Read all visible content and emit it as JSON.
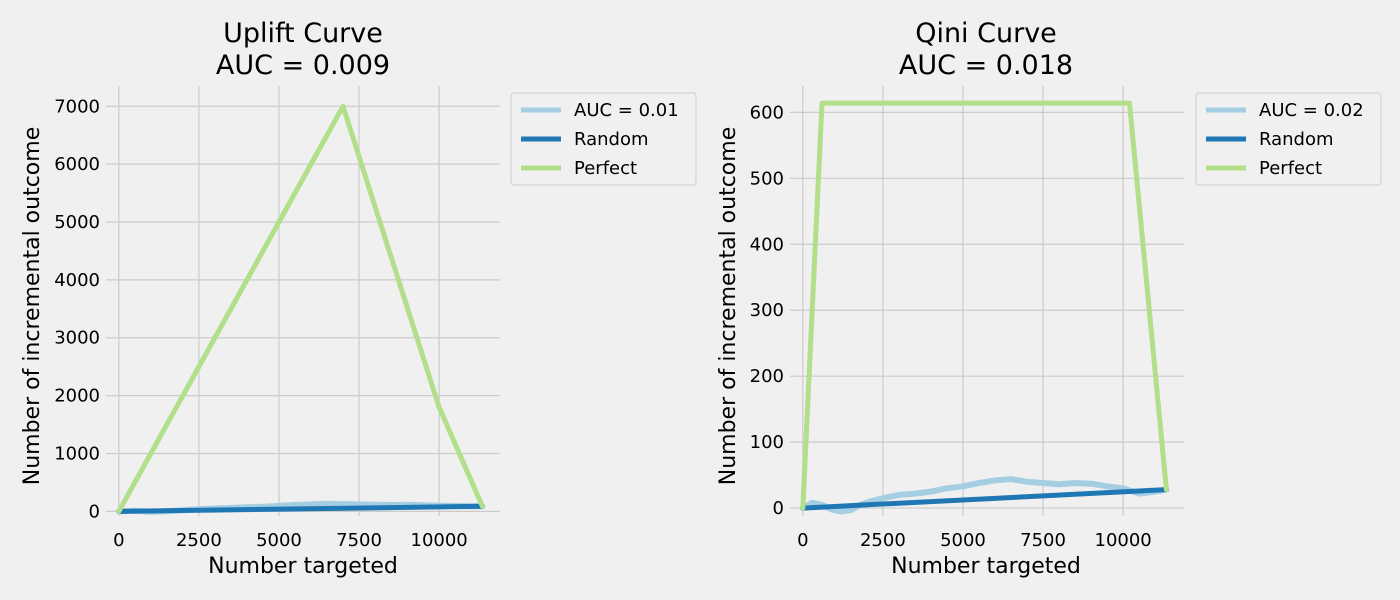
{
  "colors": {
    "background": "#f0f0f0",
    "grid": "#cbcbcb",
    "model": "#a6cee3",
    "random": "#1f78b4",
    "perfect": "#b2df8a"
  },
  "chart_data": [
    {
      "type": "line",
      "title": "Uplift Curve",
      "subtitle": "AUC = 0.009",
      "xlabel": "Number targeted",
      "ylabel": "Number of incremental outcome",
      "xlim": [
        -400,
        11900
      ],
      "ylim": [
        -80,
        7350
      ],
      "xticks": [
        0,
        2500,
        5000,
        7500,
        10000
      ],
      "yticks": [
        0,
        1000,
        2000,
        3000,
        4000,
        5000,
        6000,
        7000
      ],
      "grid": true,
      "legend_position": "outside-right",
      "series": [
        {
          "name": "AUC = 0.01",
          "color_key": "model",
          "x": [
            0,
            500,
            1000,
            1500,
            2000,
            2500,
            3000,
            3500,
            4000,
            4500,
            5000,
            5500,
            6000,
            6500,
            7000,
            7500,
            8000,
            8500,
            9000,
            9500,
            10000,
            10500,
            11000,
            11350
          ],
          "y": [
            0,
            10,
            -10,
            5,
            20,
            40,
            50,
            60,
            70,
            80,
            95,
            110,
            120,
            130,
            125,
            120,
            115,
            110,
            115,
            105,
            100,
            95,
            90,
            88
          ]
        },
        {
          "name": "Random",
          "color_key": "random",
          "x": [
            0,
            11350
          ],
          "y": [
            0,
            88
          ]
        },
        {
          "name": "Perfect",
          "color_key": "perfect",
          "x": [
            0,
            7000,
            10000,
            11350
          ],
          "y": [
            0,
            7000,
            1800,
            88
          ]
        }
      ]
    },
    {
      "type": "line",
      "title": "Qini Curve",
      "subtitle": "AUC = 0.018",
      "xlabel": "Number targeted",
      "ylabel": "Number of incremental outcome",
      "xlim": [
        -400,
        11900
      ],
      "ylim": [
        -12,
        640
      ],
      "xticks": [
        0,
        2500,
        5000,
        7500,
        10000
      ],
      "yticks": [
        0,
        100,
        200,
        300,
        400,
        500,
        600
      ],
      "grid": true,
      "legend_position": "outside-right",
      "series": [
        {
          "name": "AUC = 0.02",
          "color_key": "model",
          "x": [
            0,
            300,
            600,
            900,
            1200,
            1500,
            1800,
            2100,
            2500,
            3000,
            3500,
            4000,
            4500,
            5000,
            5500,
            6000,
            6500,
            7000,
            7500,
            8000,
            8500,
            9000,
            9500,
            10000,
            10500,
            11000,
            11350
          ],
          "y": [
            0,
            8,
            5,
            -2,
            -5,
            -3,
            5,
            10,
            15,
            20,
            22,
            25,
            30,
            33,
            38,
            42,
            44,
            40,
            38,
            36,
            38,
            37,
            33,
            30,
            22,
            25,
            28
          ]
        },
        {
          "name": "Random",
          "color_key": "random",
          "x": [
            0,
            11350
          ],
          "y": [
            0,
            28
          ]
        },
        {
          "name": "Perfect",
          "color_key": "perfect",
          "x": [
            0,
            600,
            10200,
            11350
          ],
          "y": [
            0,
            614,
            614,
            28
          ]
        }
      ]
    }
  ]
}
